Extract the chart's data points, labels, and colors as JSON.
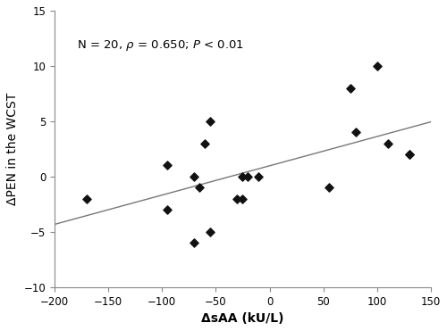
{
  "x_data": [
    -170,
    -95,
    -95,
    -70,
    -70,
    -65,
    -60,
    -55,
    -55,
    -30,
    -25,
    -25,
    -20,
    -10,
    55,
    75,
    80,
    100,
    110,
    130,
    130
  ],
  "y_data": [
    -2,
    1,
    -3,
    -6,
    0,
    -1,
    3,
    5,
    -5,
    -2,
    -2,
    0,
    0,
    0,
    -1,
    8,
    4,
    10,
    3,
    2,
    2
  ],
  "xlim": [
    -200,
    150
  ],
  "ylim": [
    -10,
    15
  ],
  "xticks": [
    -200,
    -150,
    -100,
    -50,
    0,
    50,
    100,
    150
  ],
  "yticks": [
    -10,
    -5,
    0,
    5,
    10,
    15
  ],
  "xlabel": "ΔsAA (kU/L)",
  "ylabel": "ΔPEN in the WCST",
  "marker_color": "#111111",
  "line_color": "#777777",
  "figsize": [
    5.0,
    3.71
  ],
  "dpi": 100,
  "tick_fontsize": 8.5,
  "label_fontsize": 10,
  "annot_fontsize": 9.5
}
